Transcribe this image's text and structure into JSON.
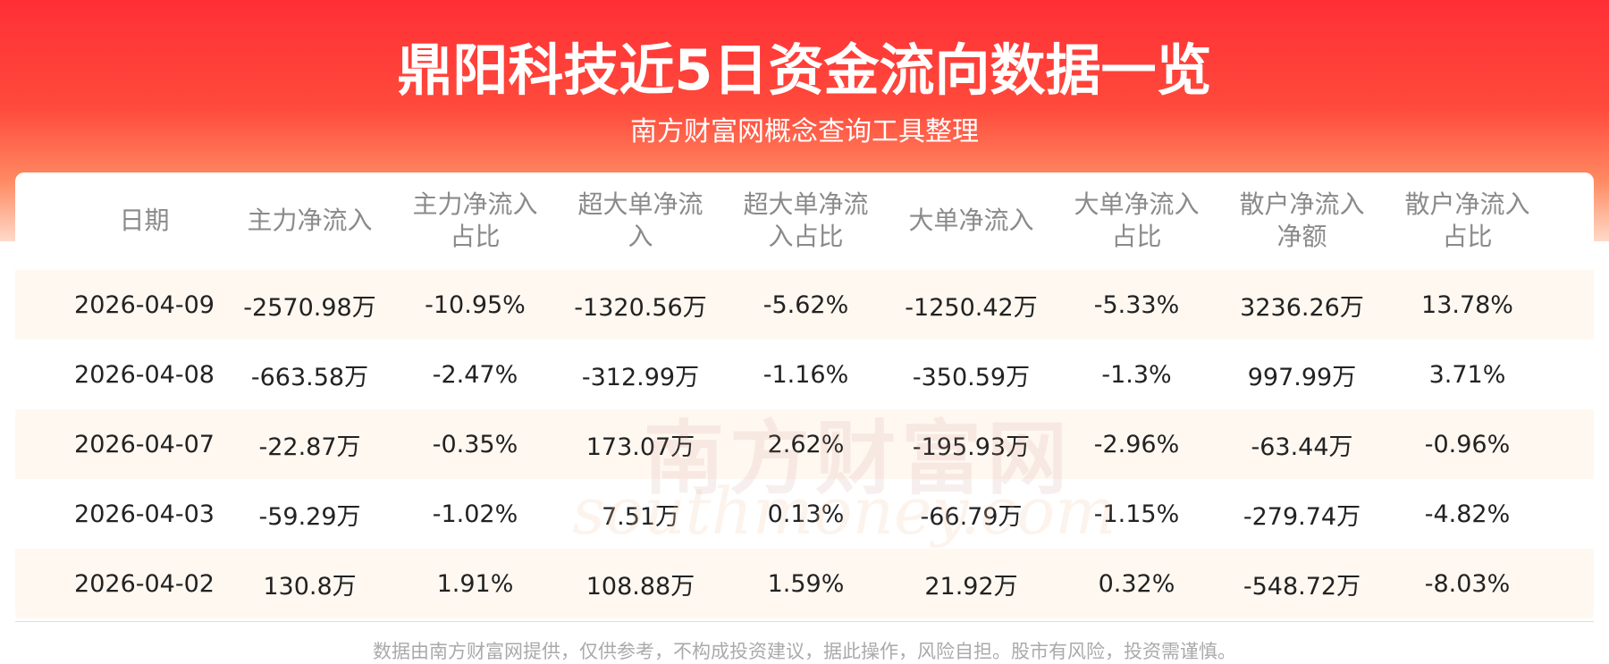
{
  "header": {
    "title": "鼎阳科技近5日资金流向数据一览",
    "subtitle": "南方财富网概念查询工具整理"
  },
  "table": {
    "columns": [
      "日期",
      "主力净流入",
      "主力净流入占比",
      "超大单净流入",
      "超大单净流入占比",
      "大单净流入",
      "大单净流入占比",
      "散户净流入净额",
      "散户净流入占比"
    ],
    "rows": [
      [
        "2026-04-09",
        "-2570.98万",
        "-10.95%",
        "-1320.56万",
        "-5.62%",
        "-1250.42万",
        "-5.33%",
        "3236.26万",
        "13.78%"
      ],
      [
        "2026-04-08",
        "-663.58万",
        "-2.47%",
        "-312.99万",
        "-1.16%",
        "-350.59万",
        "-1.3%",
        "997.99万",
        "3.71%"
      ],
      [
        "2026-04-07",
        "-22.87万",
        "-0.35%",
        "173.07万",
        "2.62%",
        "-195.93万",
        "-2.96%",
        "-63.44万",
        "-0.96%"
      ],
      [
        "2026-04-03",
        "-59.29万",
        "-1.02%",
        "7.51万",
        "0.13%",
        "-66.79万",
        "-1.15%",
        "-279.74万",
        "-4.82%"
      ],
      [
        "2026-04-02",
        "130.8万",
        "1.91%",
        "108.88万",
        "1.59%",
        "21.92万",
        "0.32%",
        "-548.72万",
        "-8.03%"
      ]
    ]
  },
  "watermark": {
    "name": "南方财富网",
    "site": "southmoney.com"
  },
  "footer": {
    "disclaimer": "数据由南方财富网提供，仅供参考，不构成投资建议，据此操作，风险自担。股市有风险，投资需谨慎。"
  }
}
